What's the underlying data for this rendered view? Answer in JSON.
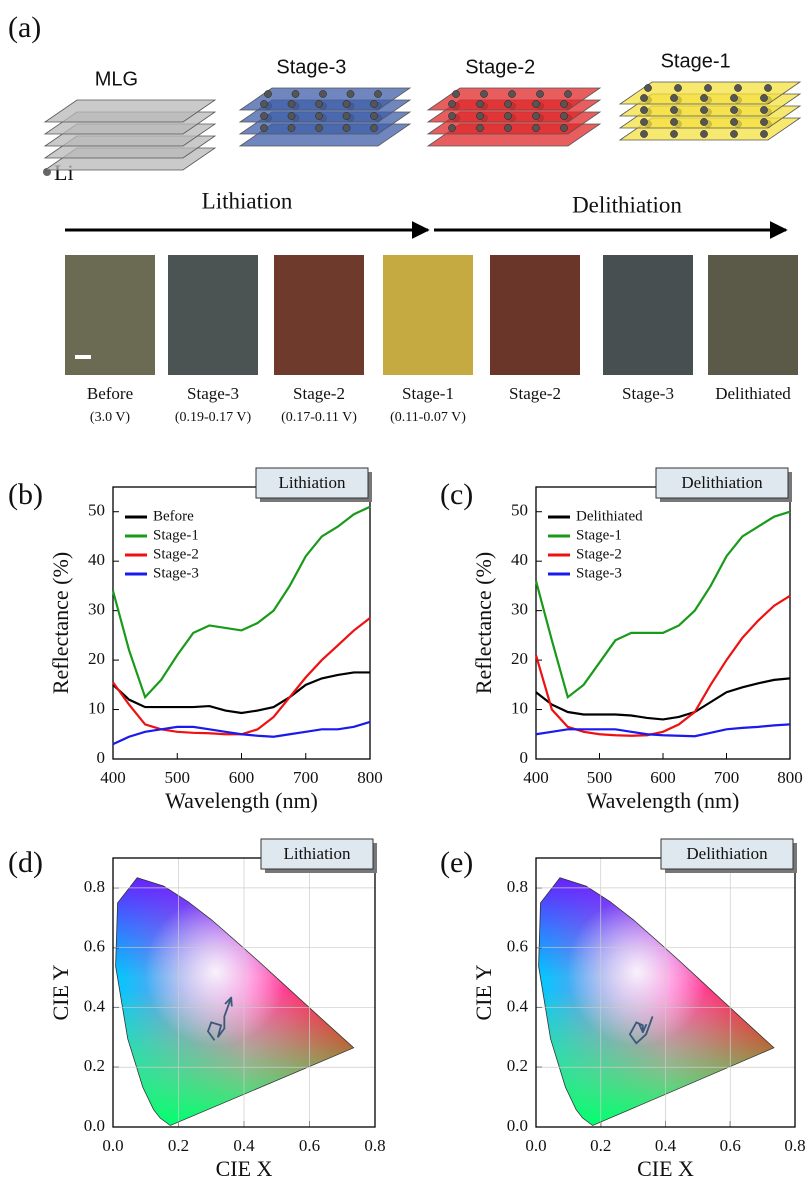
{
  "panels": [
    "(a)",
    "(b)",
    "(c)",
    "(d)",
    "(e)"
  ],
  "diagram": {
    "stacks": [
      {
        "label": "MLG",
        "color": "#b8b8b8"
      },
      {
        "label": "Stage-3",
        "color": "#3f5fa8"
      },
      {
        "label": "Stage-2",
        "color": "#e0282a"
      },
      {
        "label": "Stage-1",
        "color": "#f4e040"
      }
    ],
    "li_label": "Li",
    "arrows": [
      "Lithiation",
      "Delithiation"
    ],
    "samples": [
      {
        "label": "Before",
        "voltage": "(3.0 V)",
        "color": "#6b6a52"
      },
      {
        "label": "Stage-3",
        "voltage": "(0.19-0.17 V)",
        "color": "#4b5452"
      },
      {
        "label": "Stage-2",
        "voltage": "(0.17-0.11 V)",
        "color": "#6e3a2b"
      },
      {
        "label": "Stage-1",
        "voltage": "(0.11-0.07 V)",
        "color": "#c4aa40"
      },
      {
        "label": "Stage-2",
        "color": "#6a3629"
      },
      {
        "label": "Stage-3",
        "color": "#474f50"
      },
      {
        "label": "Delithiated",
        "color": "#5b5a49"
      }
    ]
  },
  "chart_data": [
    {
      "type": "line",
      "box_label": "Lithiation",
      "xlabel": "Wavelength (nm)",
      "ylabel": "Reflectance (%)",
      "x": [
        400,
        425,
        450,
        475,
        500,
        525,
        550,
        575,
        600,
        625,
        650,
        675,
        700,
        725,
        750,
        775,
        800
      ],
      "series": [
        {
          "name": "Before",
          "color": "#000000",
          "values": [
            15,
            12,
            10.5,
            10.5,
            10.5,
            10.5,
            10.7,
            9.8,
            9.3,
            9.8,
            10.5,
            12.5,
            15,
            16.3,
            17,
            17.5,
            17.5
          ]
        },
        {
          "name": "Stage-1",
          "color": "#1a9a1a",
          "values": [
            34,
            22,
            12.5,
            16,
            21,
            25.5,
            27,
            26.5,
            26,
            27.5,
            30,
            35,
            41,
            45,
            47,
            49.5,
            51
          ]
        },
        {
          "name": "Stage-2",
          "color": "#ee1111",
          "values": [
            15.5,
            11,
            7,
            6,
            5.5,
            5.3,
            5.2,
            5,
            5,
            6,
            8.5,
            12.5,
            16.5,
            20,
            23,
            26,
            28.5
          ]
        },
        {
          "name": "Stage-3",
          "color": "#1a1aee",
          "values": [
            3,
            4.5,
            5.5,
            6,
            6.5,
            6.5,
            6,
            5.5,
            5,
            4.7,
            4.5,
            5,
            5.5,
            6,
            6,
            6.5,
            7.5
          ]
        }
      ],
      "xlim": [
        400,
        800
      ],
      "ylim": [
        0,
        55
      ],
      "xticks": [
        400,
        500,
        600,
        700,
        800
      ],
      "yticks": [
        0,
        10,
        20,
        30,
        40,
        50
      ],
      "legend": "upper left"
    },
    {
      "type": "line",
      "box_label": "Delithiation",
      "xlabel": "Wavelength (nm)",
      "ylabel": "Reflectance (%)",
      "x": [
        400,
        425,
        450,
        475,
        500,
        525,
        550,
        575,
        600,
        625,
        650,
        675,
        700,
        725,
        750,
        775,
        800
      ],
      "series": [
        {
          "name": "Delithiated",
          "color": "#000000",
          "values": [
            13.5,
            11,
            9.5,
            9,
            9,
            9,
            8.8,
            8.3,
            8,
            8.5,
            9.5,
            11.5,
            13.5,
            14.5,
            15.3,
            16,
            16.3
          ]
        },
        {
          "name": "Stage-1",
          "color": "#1a9a1a",
          "values": [
            36,
            24,
            12.5,
            15,
            19.5,
            24,
            25.5,
            25.5,
            25.5,
            27,
            30,
            35,
            41,
            45,
            47,
            49,
            50
          ]
        },
        {
          "name": "Stage-2",
          "color": "#ee1111",
          "values": [
            21,
            10,
            6.5,
            5.5,
            5,
            4.8,
            4.7,
            4.8,
            5.5,
            7,
            9.5,
            15,
            20,
            24.5,
            28,
            31,
            33
          ]
        },
        {
          "name": "Stage-3",
          "color": "#1a1aee",
          "values": [
            5,
            5.5,
            6,
            6,
            6,
            6,
            5.5,
            5,
            4.8,
            4.7,
            4.6,
            5.3,
            6,
            6.3,
            6.5,
            6.8,
            7
          ]
        }
      ],
      "xlim": [
        400,
        800
      ],
      "ylim": [
        0,
        55
      ],
      "xticks": [
        400,
        500,
        600,
        700,
        800
      ],
      "yticks": [
        0,
        10,
        20,
        30,
        40,
        50
      ],
      "legend": "upper left"
    },
    {
      "type": "cie",
      "box_label": "Lithiation",
      "xlabel": "CIE X",
      "ylabel": "CIE Y",
      "series": [
        {
          "color": "#3a5a78",
          "x": [
            0.31,
            0.29,
            0.3,
            0.33,
            0.32,
            0.34,
            0.34,
            0.35,
            0.36
          ],
          "values": [
            0.29,
            0.32,
            0.35,
            0.34,
            0.3,
            0.33,
            0.37,
            0.4,
            0.43
          ]
        }
      ],
      "xlim": [
        0,
        0.8
      ],
      "ylim": [
        0,
        0.9
      ],
      "xticks": [
        {
          "value": 0,
          "label": "0.0"
        },
        0.2,
        0.4,
        0.6,
        0.8
      ],
      "yticks": [
        {
          "value": 0,
          "label": "0.0"
        },
        0.2,
        0.4,
        0.6,
        0.8
      ],
      "grid": true
    },
    {
      "type": "cie",
      "box_label": "Delithiation",
      "xlabel": "CIE X",
      "ylabel": "CIE Y",
      "series": [
        {
          "color": "#3a5a78",
          "x": [
            0.36,
            0.34,
            0.31,
            0.29,
            0.31,
            0.33,
            0.33
          ],
          "values": [
            0.37,
            0.31,
            0.28,
            0.31,
            0.35,
            0.34,
            0.32
          ]
        }
      ],
      "xlim": [
        0,
        0.8
      ],
      "ylim": [
        0,
        0.9
      ],
      "xticks": [
        {
          "value": 0,
          "label": "0.0"
        },
        0.2,
        0.4,
        0.6,
        0.8
      ],
      "yticks": [
        {
          "value": 0,
          "label": "0.0"
        },
        0.2,
        0.4,
        0.6,
        0.8
      ],
      "grid": true
    }
  ]
}
